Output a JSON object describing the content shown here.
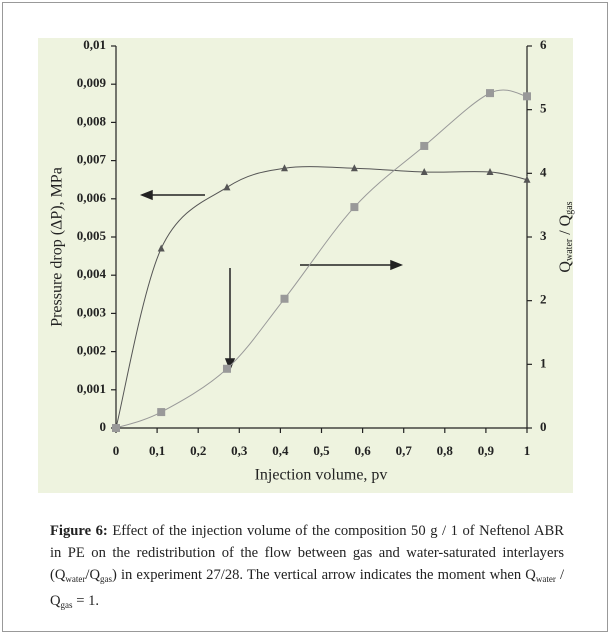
{
  "chart_data": {
    "type": "line",
    "xlabel": "Injection volume, pv",
    "ylabel": "Pressure drop (ΔP), MPa",
    "y2label": [
      "Q",
      "water",
      " / Q",
      "gas"
    ],
    "x": [
      0,
      0.11,
      0.27,
      0.41,
      0.58,
      0.75,
      0.91,
      1.0
    ],
    "series": [
      {
        "marker": "triangle",
        "color": "#555555",
        "axis": "y",
        "values": [
          0,
          0.0047,
          0.0063,
          0.0068,
          0.0068,
          0.0067,
          0.0067,
          0.0065
        ]
      },
      {
        "marker": "square",
        "color": "#999999",
        "axis": "y2",
        "values": [
          0,
          0.25,
          0.93,
          2.03,
          3.47,
          4.43,
          5.26,
          5.21
        ]
      }
    ],
    "xlim": [
      0,
      1
    ],
    "xticks": [
      0,
      {
        "value": 0.1,
        "label": "0,1"
      },
      {
        "value": 0.2,
        "label": "0,2"
      },
      {
        "value": 0.3,
        "label": "0,3"
      },
      {
        "value": 0.4,
        "label": "0,4"
      },
      {
        "value": 0.5,
        "label": "0,5"
      },
      {
        "value": 0.6,
        "label": "0,6"
      },
      {
        "value": 0.7,
        "label": "0,7"
      },
      {
        "value": 0.8,
        "label": "0,8"
      },
      {
        "value": 0.9,
        "label": "0,9"
      },
      1
    ],
    "ylim": [
      0,
      0.01
    ],
    "yticks": [
      0,
      {
        "value": 0.001,
        "label": "0,001"
      },
      {
        "value": 0.002,
        "label": "0,002"
      },
      {
        "value": 0.003,
        "label": "0,003"
      },
      {
        "value": 0.004,
        "label": "0,004"
      },
      {
        "value": 0.005,
        "label": "0,005"
      },
      {
        "value": 0.006,
        "label": "0,006"
      },
      {
        "value": 0.007,
        "label": "0,007"
      },
      {
        "value": 0.008,
        "label": "0,008"
      },
      {
        "value": 0.009,
        "label": "0,009"
      },
      {
        "value": 0.01,
        "label": "0,01"
      }
    ],
    "y2lim": [
      0,
      6
    ],
    "y2ticks": [
      0,
      1,
      2,
      3,
      4,
      5,
      6
    ],
    "caption": [
      {
        "text": "Figure 6:",
        "style": "bold"
      },
      {
        "text": " Effect of the injection volume of the composition 50 g / 1 of Neftenol ABR in PE on the redistribution of the flow between gas and water-saturated interlayers (Q",
        "style": "normal"
      },
      {
        "text": "water",
        "style": "sub"
      },
      {
        "text": "/Q",
        "style": "normal"
      },
      {
        "text": "gas",
        "style": "sub"
      },
      {
        "text": ") in experiment 27/28. The vertical arrow indicates the moment when Q",
        "style": "normal"
      },
      {
        "text": "water",
        "style": "sub"
      },
      {
        "text": " / Q",
        "style": "normal"
      },
      {
        "text": "gas",
        "style": "sub"
      },
      {
        "text": " = 1.",
        "style": "normal"
      }
    ]
  }
}
